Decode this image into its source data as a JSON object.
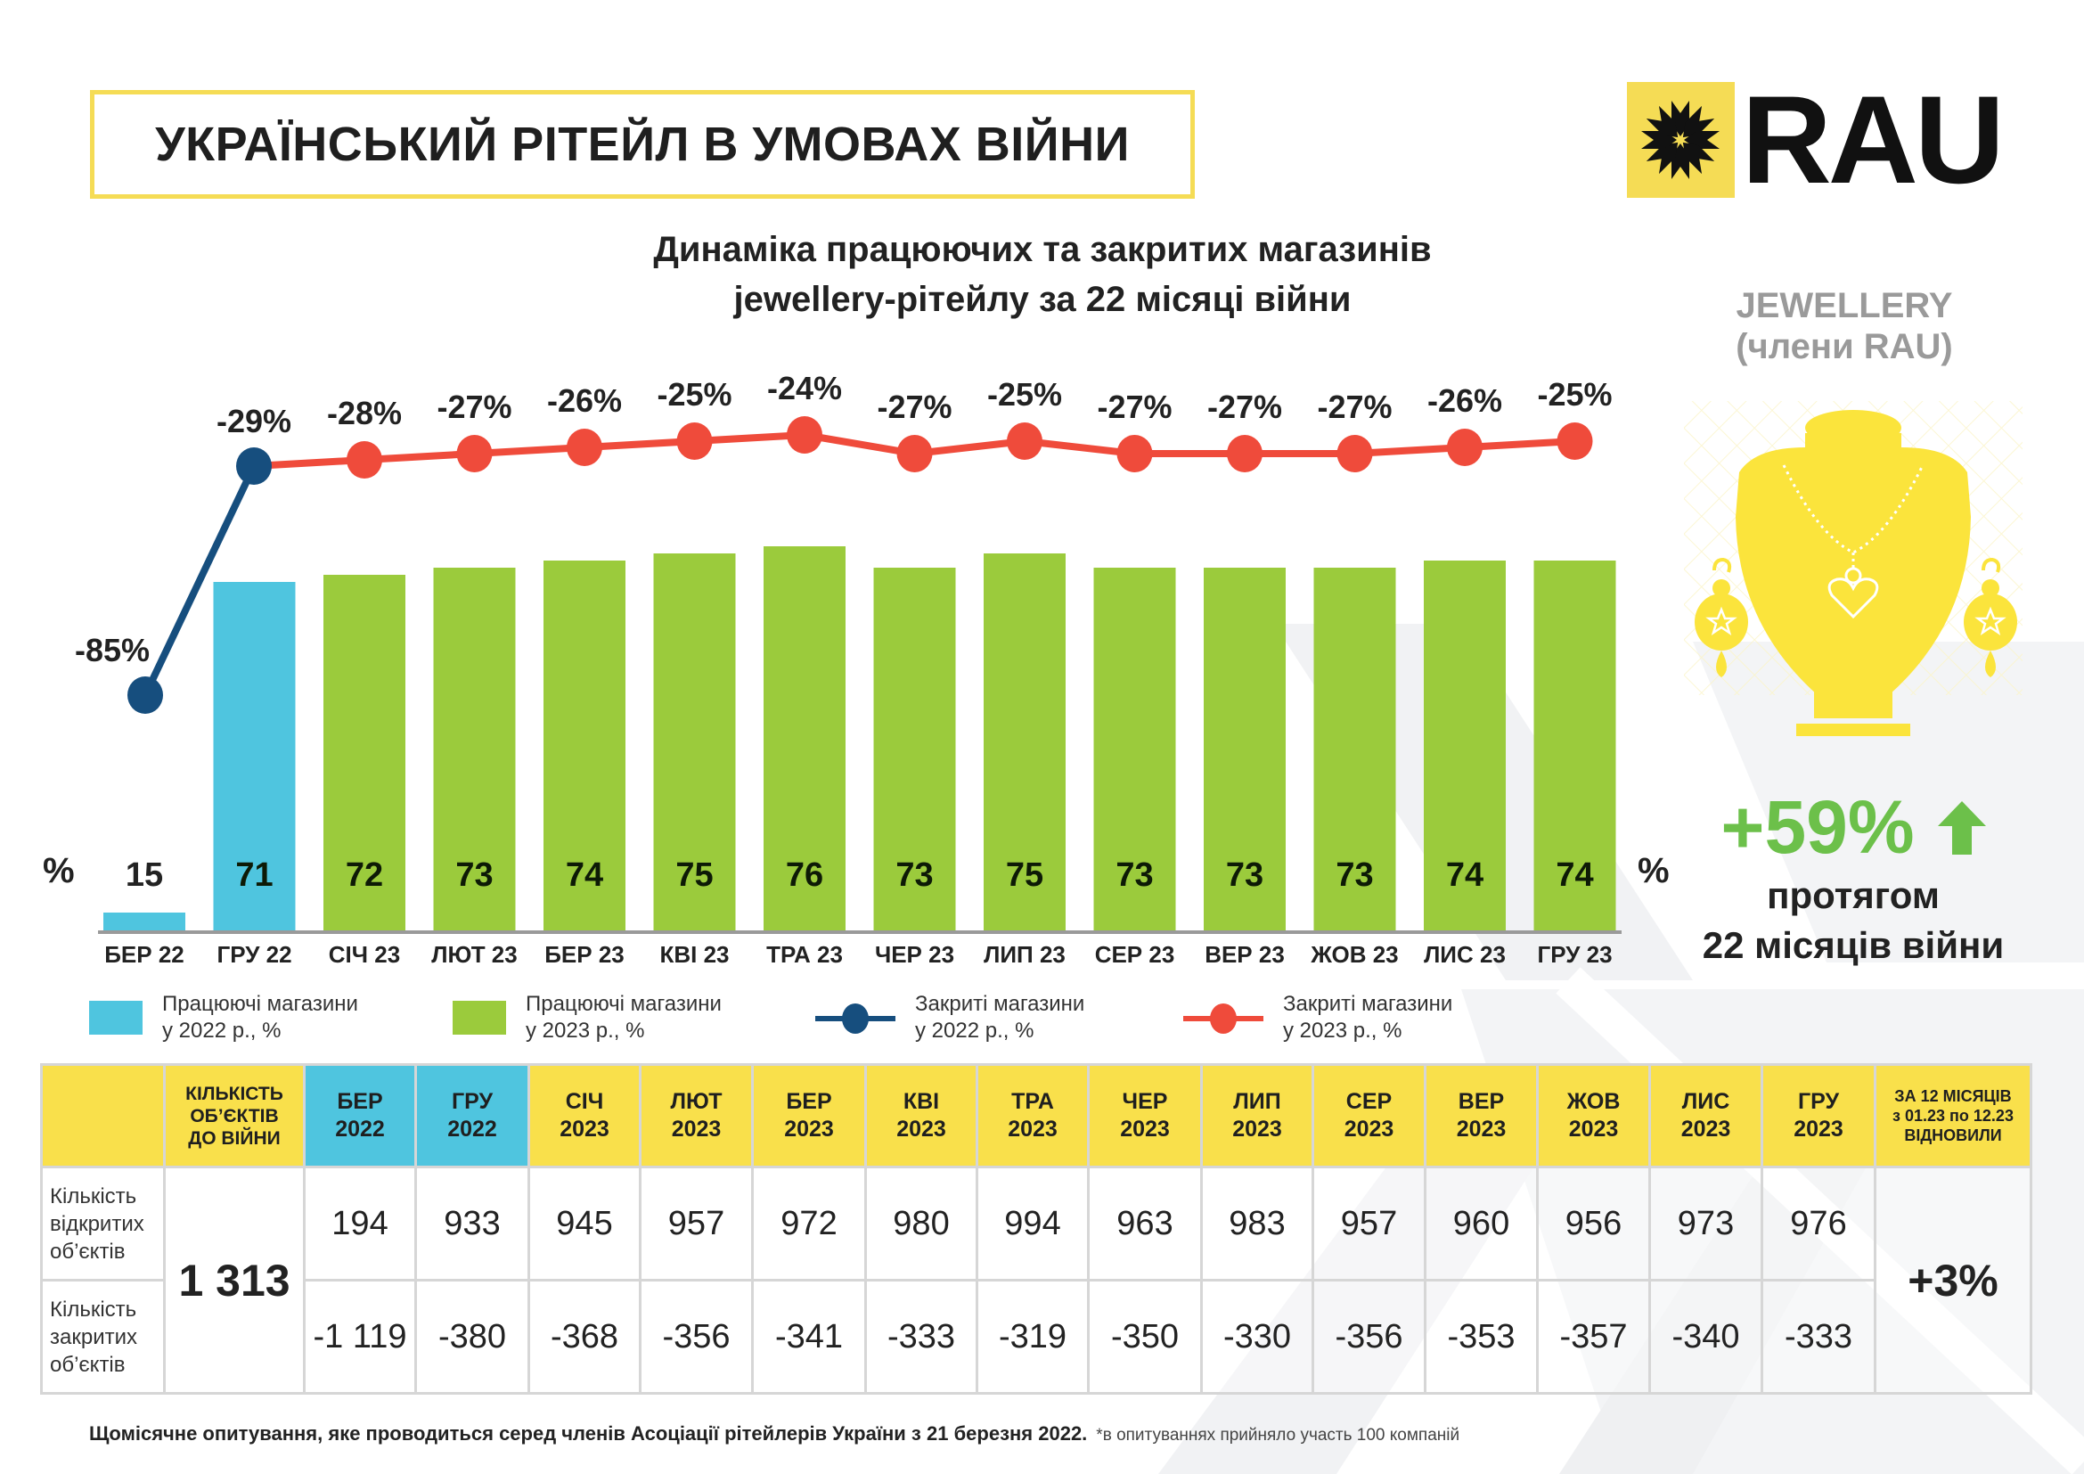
{
  "header": {
    "title": "УКРАЇНСЬКИЙ РІТЕЙЛ В УМОВАХ ВІЙНИ",
    "logo_text": "RAU",
    "subtitle_line1": "Динаміка працюючих та закритих магазинів",
    "subtitle_line2": "jewellery-рітейлу за 22 місяці війни"
  },
  "colors": {
    "brand_yellow": "#f5dc55",
    "bar_2022": "#4fc5df",
    "bar_2023": "#9bcb3c",
    "line_2022": "#164e7e",
    "line_2023": "#ef4b3b",
    "growth_green": "#6cc04a",
    "table_header_yellow": "#f9e04b"
  },
  "chart_data": {
    "type": "bar",
    "title": "Динаміка працюючих та закритих магазинів jewellery-рітейлу за 22 місяці війни",
    "unit_label_left": "%",
    "unit_label_right": "%",
    "categories": [
      "БЕР 22",
      "ГРУ 22",
      "СІЧ 23",
      "ЛЮТ 23",
      "БЕР 23",
      "КВІ 23",
      "ТРА 23",
      "ЧЕР 23",
      "ЛИП 23",
      "СЕР 23",
      "ВЕР 23",
      "ЖОВ 23",
      "ЛИС 23",
      "ГРУ 23"
    ],
    "series": [
      {
        "name": "Працюючі магазини у 2022 р., %",
        "kind": "bar",
        "year": 2022,
        "values": [
          15,
          71,
          null,
          null,
          null,
          null,
          null,
          null,
          null,
          null,
          null,
          null,
          null,
          null
        ]
      },
      {
        "name": "Працюючі магазини у 2023 р., %",
        "kind": "bar",
        "year": 2023,
        "values": [
          null,
          null,
          72,
          73,
          74,
          75,
          76,
          73,
          75,
          73,
          73,
          73,
          74,
          74
        ]
      },
      {
        "name": "Закриті магазини у 2022 р., %",
        "kind": "line",
        "year": 2022,
        "values": [
          -85,
          -29,
          null,
          null,
          null,
          null,
          null,
          null,
          null,
          null,
          null,
          null,
          null,
          null
        ]
      },
      {
        "name": "Закриті магазини у 2023 р., %",
        "kind": "line",
        "year": 2023,
        "values": [
          null,
          -29,
          -28,
          -27,
          -26,
          -25,
          -24,
          -27,
          -25,
          -27,
          -27,
          -27,
          -26,
          -25
        ]
      }
    ],
    "line_labels": [
      "-85%",
      "-29%",
      "-28%",
      "-27%",
      "-26%",
      "-25%",
      "-24%",
      "-27%",
      "-25%",
      "-27%",
      "-27%",
      "-27%",
      "-26%",
      "-25%"
    ],
    "legend": [
      {
        "line1": "Працюючі магазини",
        "line2": "у 2022 р., %"
      },
      {
        "line1": "Працюючі магазини",
        "line2": "у 2023 р., %"
      },
      {
        "line1": "Закриті магазини",
        "line2": "у 2022 р., %"
      },
      {
        "line1": "Закриті магазини",
        "line2": "у 2023 р., %"
      }
    ],
    "legend_position": "bottom",
    "grid": false
  },
  "right_panel": {
    "category_line1": "JEWELLERY",
    "category_line2": "(члени RAU)",
    "growth_value": "+59%",
    "growth_text1": "протягом",
    "growth_text2": "22 місяців війни"
  },
  "table": {
    "headers": [
      {
        "line1": "",
        "line2": "",
        "line3": ""
      },
      {
        "line1": "КІЛЬКІСТЬ",
        "line2": "ОБ’ЄКТІВ",
        "line3": "ДО ВІЙНИ"
      },
      {
        "line1": "БЕР",
        "line2": "2022"
      },
      {
        "line1": "ГРУ",
        "line2": "2022"
      },
      {
        "line1": "СІЧ",
        "line2": "2023"
      },
      {
        "line1": "ЛЮТ",
        "line2": "2023"
      },
      {
        "line1": "БЕР",
        "line2": "2023"
      },
      {
        "line1": "КВІ",
        "line2": "2023"
      },
      {
        "line1": "ТРА",
        "line2": "2023"
      },
      {
        "line1": "ЧЕР",
        "line2": "2023"
      },
      {
        "line1": "ЛИП",
        "line2": "2023"
      },
      {
        "line1": "СЕР",
        "line2": "2023"
      },
      {
        "line1": "ВЕР",
        "line2": "2023"
      },
      {
        "line1": "ЖОВ",
        "line2": "2023"
      },
      {
        "line1": "ЛИС",
        "line2": "2023"
      },
      {
        "line1": "ГРУ",
        "line2": "2023"
      },
      {
        "line1": "ЗА 12 МІСЯЦІВ",
        "line2": "з 01.23 по 12.23",
        "line3": "ВІДНОВИЛИ"
      }
    ],
    "prewar_count": "1 313",
    "summary": "+3%",
    "rows": [
      {
        "label1": "Кількість",
        "label2": "відкритих",
        "label3": "об’єктів",
        "values": [
          "194",
          "933",
          "945",
          "957",
          "972",
          "980",
          "994",
          "963",
          "983",
          "957",
          "960",
          "956",
          "973",
          "976"
        ]
      },
      {
        "label1": "Кількість",
        "label2": "закритих",
        "label3": "об’єктів",
        "values": [
          "-1 119",
          "-380",
          "-368",
          "-356",
          "-341",
          "-333",
          "-319",
          "-350",
          "-330",
          "-356",
          "-353",
          "-357",
          "-340",
          "-333"
        ]
      }
    ]
  },
  "footer": {
    "main": "Щомісячне опитування, яке проводиться серед членів Асоціації рітейлерів України з 21 березня 2022.",
    "note": "*в опитуваннях прийняло участь 100 компаній"
  }
}
